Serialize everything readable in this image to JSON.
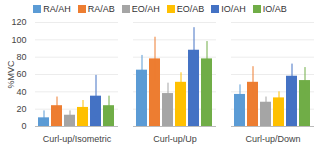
{
  "chart_data": {
    "type": "bar",
    "y_label": "%MVC",
    "categories": [
      "Curl-up/Isometric",
      "Curl-up/Up",
      "Curl-up/Down"
    ],
    "series": [
      {
        "name": "RA/AH",
        "color": "#5B9BD5",
        "values": [
          10,
          65,
          37
        ],
        "errors": [
          8,
          17,
          11
        ]
      },
      {
        "name": "RA/AB",
        "color": "#ED7D31",
        "values": [
          24,
          78,
          51
        ],
        "errors": [
          10,
          25,
          18
        ]
      },
      {
        "name": "EO/AH",
        "color": "#A5A5A5",
        "values": [
          13,
          38,
          28
        ],
        "errors": [
          5,
          12,
          6
        ]
      },
      {
        "name": "EO/AB",
        "color": "#FFC000",
        "values": [
          22,
          51,
          33
        ],
        "errors": [
          8,
          11,
          7
        ]
      },
      {
        "name": "IO/AH",
        "color": "#4472C4",
        "values": [
          35,
          88,
          58
        ],
        "errors": [
          24,
          26,
          14
        ]
      },
      {
        "name": "IO/AB",
        "color": "#70AD47",
        "values": [
          24,
          78,
          53
        ],
        "errors": [
          11,
          20,
          15
        ]
      }
    ],
    "ylim": [
      0,
      120
    ],
    "yticks": [
      0,
      20,
      40,
      60,
      80,
      100,
      120
    ],
    "grid": true,
    "legend": "top"
  }
}
